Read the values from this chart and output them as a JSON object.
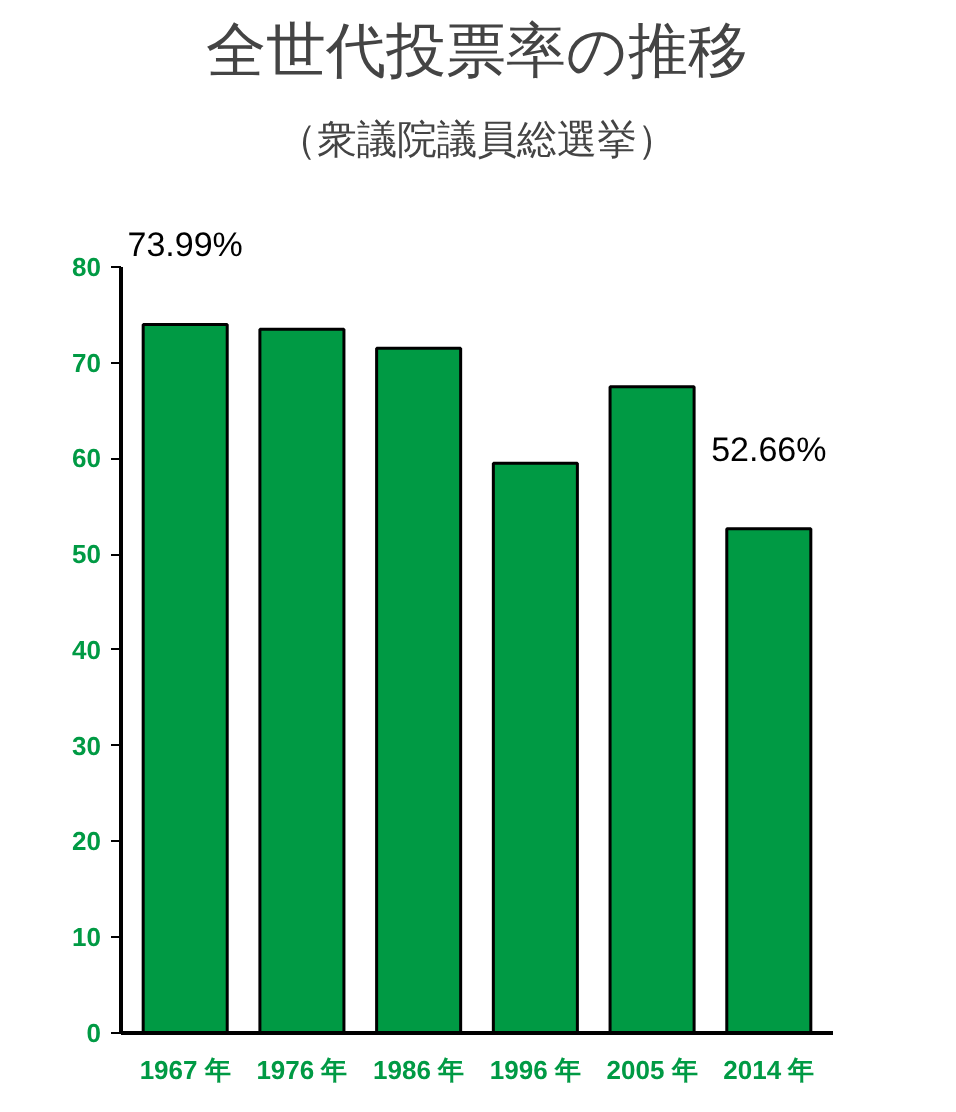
{
  "chart_data": {
    "type": "bar",
    "title": "全世代投票率の推移",
    "subtitle": "（衆議院議員総選挙）",
    "categories": [
      "1967 年",
      "1976 年",
      "1986 年",
      "1996 年",
      "2005 年",
      "2014 年"
    ],
    "values": [
      73.99,
      73.5,
      71.5,
      59.5,
      67.5,
      52.66
    ],
    "value_labels": [
      "73.99%",
      null,
      null,
      null,
      null,
      "52.66%"
    ],
    "color": "#009a44",
    "ylim": [
      0,
      80
    ],
    "yticks": [
      0,
      10,
      20,
      30,
      40,
      50,
      60,
      70,
      80
    ],
    "grid": false
  }
}
